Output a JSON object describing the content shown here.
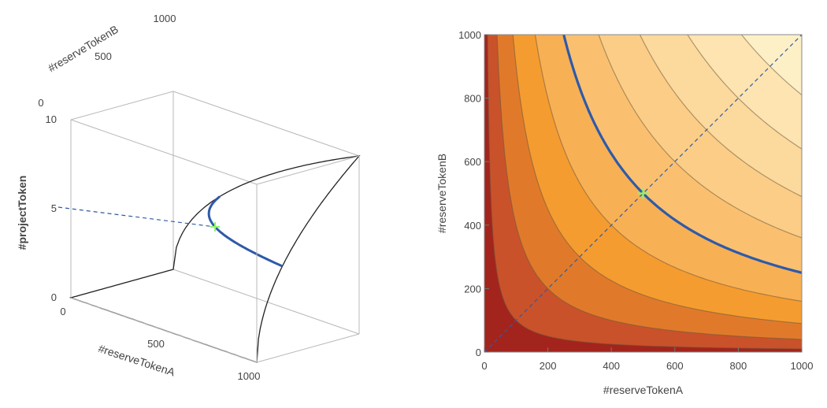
{
  "chart_data": [
    {
      "type": "surface",
      "xlabel": "#reserveTokenA",
      "ylabel": "#reserveTokenB",
      "zlabel": "#projectToken",
      "x_ticks": [
        "0",
        "500",
        "1000"
      ],
      "y_ticks": [
        "0",
        "500",
        "1000"
      ],
      "z_ticks": [
        "0",
        "5",
        "10"
      ],
      "xlim": [
        0,
        1000
      ],
      "ylim": [
        0,
        1000
      ],
      "zlim": [
        0,
        10
      ],
      "function": "z = 10*sqrt(x*y)/1000",
      "highlight_point": {
        "x": 500,
        "y": 500,
        "z": 5
      },
      "highlight_curve": "z = 5",
      "colors": {
        "curve": "#2f5aa8",
        "point": "#8ef56a",
        "surface_low": "#5a1c10",
        "surface_high": "#e8dcaa"
      }
    },
    {
      "type": "contour",
      "xlabel": "#reserveTokenA",
      "ylabel": "#reserveTokenB",
      "x_ticks": [
        "0",
        "200",
        "400",
        "600",
        "800",
        "1000"
      ],
      "y_ticks": [
        "0",
        "200",
        "400",
        "600",
        "800",
        "1000"
      ],
      "xlim": [
        0,
        1000
      ],
      "ylim": [
        0,
        1000
      ],
      "contour_products": [
        10000,
        40000,
        90000,
        160000,
        250000,
        360000,
        490000,
        640000,
        810000
      ],
      "highlight_curve_product": 250000,
      "highlight_point": {
        "x": 500,
        "y": 500
      },
      "diagonal": true,
      "colors": {
        "curve": "#2f5aa8",
        "point": "#8ef56a",
        "diagonal": "#2f5aa8",
        "bands": [
          "#a3241c",
          "#c9522a",
          "#e07a2a",
          "#f59c30",
          "#f8b054",
          "#fac070",
          "#fbcd86",
          "#fcd99c",
          "#fde4b0",
          "#fef0c6"
        ]
      }
    }
  ]
}
